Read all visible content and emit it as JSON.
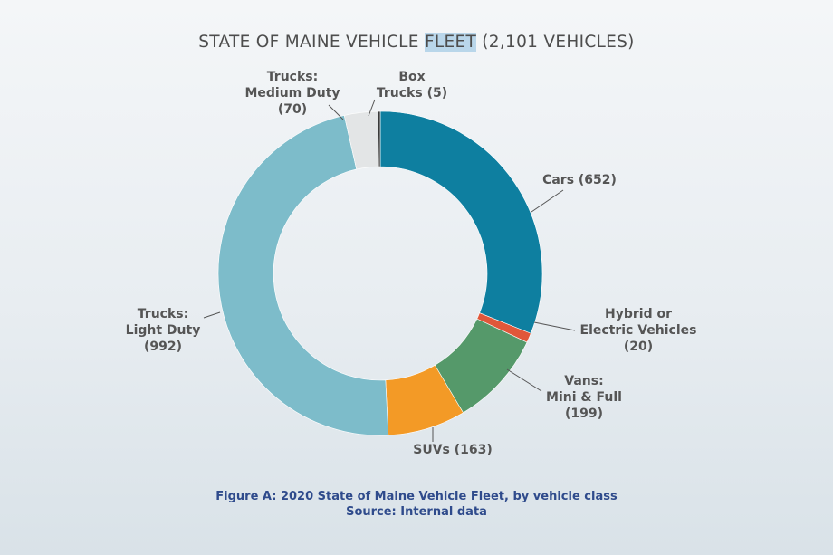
{
  "chart_data": {
    "type": "pie",
    "donut": true,
    "title_parts": [
      "STATE OF MAINE VEHICLE ",
      "FLEET",
      " (2,101 VEHICLES)"
    ],
    "slices": [
      {
        "name": "Cars",
        "label": "Cars (652)",
        "value": 652,
        "color": "#0e7fa0"
      },
      {
        "name": "Hybrid or Electric Vehicles",
        "label": "Hybrid or\nElectric Vehicles\n(20)",
        "value": 20,
        "color": "#e0573a"
      },
      {
        "name": "Vans: Mini & Full",
        "label": "Vans:\nMini & Full\n(199)",
        "value": 199,
        "color": "#55996a"
      },
      {
        "name": "SUVs",
        "label": "SUVs (163)",
        "value": 163,
        "color": "#f39a26"
      },
      {
        "name": "Trucks: Light Duty",
        "label": "Trucks:\nLight Duty\n(992)",
        "value": 992,
        "color": "#7dbcca"
      },
      {
        "name": "Trucks: Medium Duty",
        "label": "Trucks:\nMedium Duty\n(70)",
        "value": 70,
        "color": "#e3e5e6"
      },
      {
        "name": "Box Trucks",
        "label": "Box\nTrucks (5)",
        "value": 5,
        "color": "#3a3a3a"
      }
    ],
    "start": "top",
    "direction": "clockwise"
  },
  "caption": {
    "line1": "Figure A: 2020 State of Maine Vehicle Fleet, by vehicle class",
    "line2": "Source: Internal data"
  }
}
